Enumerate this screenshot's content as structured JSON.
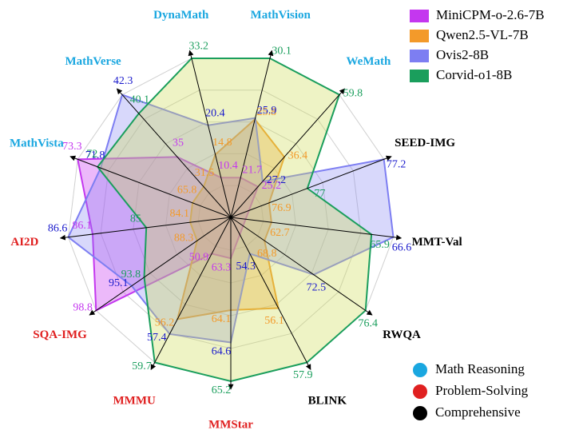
{
  "chart_data": {
    "type": "radar",
    "categories": [
      "DynaMath",
      "MathVision",
      "WeMath",
      "SEED-IMG",
      "MMT-Val",
      "RWQA",
      "BLINK",
      "MMStar",
      "MMMU",
      "SQA-IMG",
      "AI2D",
      "MathVista",
      "MathVerse"
    ],
    "category_group": [
      0,
      0,
      0,
      2,
      2,
      2,
      2,
      1,
      1,
      1,
      1,
      0,
      0
    ],
    "groups": [
      {
        "name": "Math Reasoning",
        "color": "#1aa7e0"
      },
      {
        "name": "Problem-Solving",
        "color": "#e02020"
      },
      {
        "name": "Comprehensive",
        "color": "#000000"
      }
    ],
    "series": [
      {
        "name": "MiniCPM-o-2.6-7B",
        "color": "#c437ef",
        "values": [
          10.4,
          21.7,
          25.2,
          null,
          null,
          null,
          null,
          63.3,
          50.9,
          98.8,
          86.1,
          73.3,
          35.0
        ]
      },
      {
        "name": "Qwen2.5-VL-7B",
        "color": "#f39a2a",
        "values": [
          14.8,
          25.8,
          36.4,
          76.9,
          62.7,
          68.8,
          56.1,
          64.1,
          56.2,
          88.3,
          84.1,
          65.8,
          31.5
        ]
      },
      {
        "name": "Ovis2-8B",
        "color": "#7d7ef2",
        "values": [
          20.4,
          25.9,
          27.2,
          77.2,
          66.6,
          72.5,
          54.3,
          64.6,
          57.4,
          95.1,
          86.6,
          71.8,
          42.3
        ]
      },
      {
        "name": "Corvid-o1-8B",
        "color": "#1a9e5c",
        "values": [
          33.2,
          30.1,
          59.8,
          77.0,
          65.9,
          76.4,
          57.9,
          65.2,
          59.7,
          93.8,
          85.0,
          72.0,
          40.1
        ]
      }
    ]
  }
}
